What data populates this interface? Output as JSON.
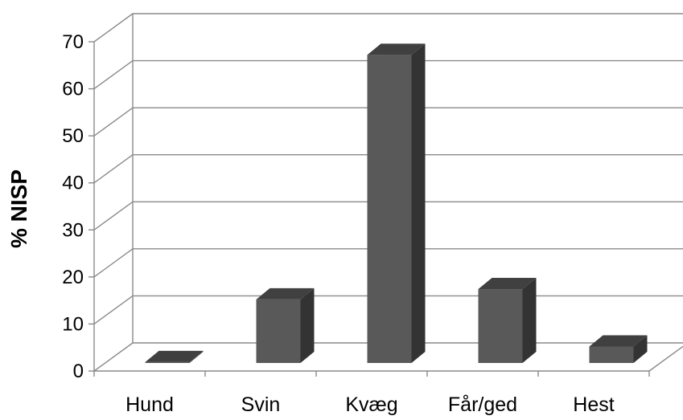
{
  "chart_data": {
    "type": "bar",
    "style": "3d-column",
    "categories": [
      "Hund",
      "Svin",
      "Kvæg",
      "Får/ged",
      "Hest"
    ],
    "values": [
      0.2,
      13.5,
      65.5,
      15.7,
      3.5
    ],
    "ylabel": "% NISP",
    "xlabel": "",
    "title": "",
    "ylim": [
      0,
      70
    ],
    "yticks": [
      0,
      10,
      20,
      30,
      40,
      50,
      60,
      70
    ],
    "grid": true,
    "legend": "none",
    "colors": {
      "bar_front": "#595959",
      "bar_top": "#404040",
      "bar_side": "#333333",
      "grid": "#8a8a8a"
    }
  }
}
